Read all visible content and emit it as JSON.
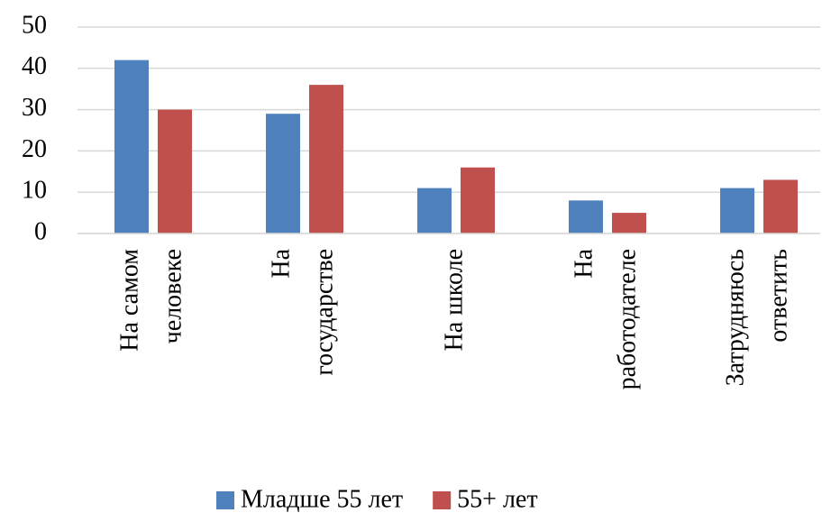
{
  "chart_data": {
    "type": "bar",
    "categories": [
      [
        "На самом",
        "человеке"
      ],
      [
        "На",
        "государстве"
      ],
      [
        "На школе"
      ],
      [
        "На",
        "работодателе"
      ],
      [
        "Затрудняюсь",
        "ответить"
      ]
    ],
    "series": [
      {
        "name": "Младше 55 лет",
        "color": "#4f81bd",
        "values": [
          42,
          29,
          11,
          8,
          11
        ]
      },
      {
        "name": "55+ лет",
        "color": "#c0504d",
        "values": [
          30,
          36,
          16,
          5,
          13
        ]
      }
    ],
    "ylim": [
      0,
      50
    ],
    "yticks": [
      0,
      10,
      20,
      30,
      40,
      50
    ],
    "grid": true,
    "legend": "bottom"
  }
}
